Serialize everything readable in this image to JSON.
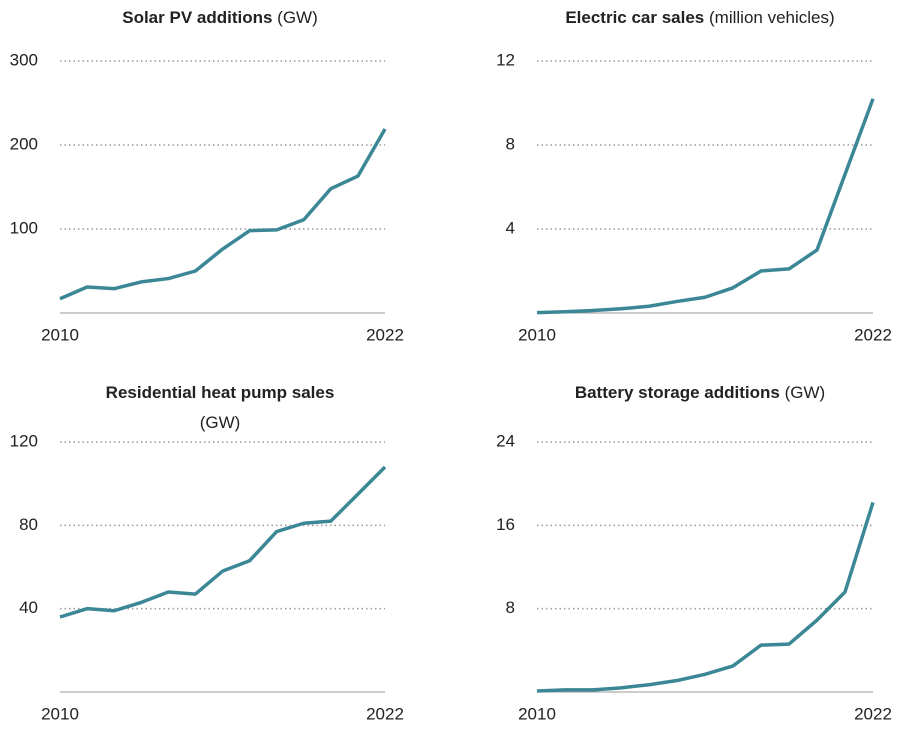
{
  "chart_data": [
    {
      "type": "line",
      "title": "Solar PV additions",
      "subtitle": "(GW)",
      "x": [
        2010,
        2011,
        2012,
        2013,
        2014,
        2015,
        2016,
        2017,
        2018,
        2019,
        2020,
        2021,
        2022
      ],
      "values": [
        17,
        31,
        29,
        37,
        41,
        50,
        76,
        98,
        99,
        111,
        148,
        163,
        219
      ],
      "color": "#3b8796",
      "xlim": [
        2010,
        2022
      ],
      "xticks": [
        2010,
        2022
      ],
      "ylim": [
        0,
        300
      ],
      "yticks": [
        100,
        200,
        300
      ],
      "grid": true
    },
    {
      "type": "line",
      "title": "Electric car sales",
      "subtitle": "(million vehicles)",
      "x": [
        2010,
        2011,
        2012,
        2013,
        2014,
        2015,
        2016,
        2017,
        2018,
        2019,
        2020,
        2021,
        2022
      ],
      "values": [
        0.02,
        0.06,
        0.12,
        0.2,
        0.32,
        0.55,
        0.75,
        1.2,
        2.0,
        2.1,
        3.0,
        6.6,
        10.2
      ],
      "color": "#3b8796",
      "xlim": [
        2010,
        2022
      ],
      "xticks": [
        2010,
        2022
      ],
      "ylim": [
        0,
        12
      ],
      "yticks": [
        4,
        8,
        12
      ],
      "grid": true
    },
    {
      "type": "line",
      "title": "Residential heat pump sales",
      "subtitle": "(GW)",
      "x": [
        2010,
        2011,
        2012,
        2013,
        2014,
        2015,
        2016,
        2017,
        2018,
        2019,
        2020,
        2021,
        2022
      ],
      "values": [
        36,
        40,
        39,
        43,
        48,
        47,
        58,
        63,
        77,
        81,
        82,
        95,
        108
      ],
      "color": "#3b8796",
      "xlim": [
        2010,
        2022
      ],
      "xticks": [
        2010,
        2022
      ],
      "ylim": [
        0,
        120
      ],
      "yticks": [
        40,
        80,
        120
      ],
      "grid": true
    },
    {
      "type": "line",
      "title": "Battery storage additions",
      "subtitle": "(GW)",
      "x": [
        2010,
        2011,
        2012,
        2013,
        2014,
        2015,
        2016,
        2017,
        2018,
        2019,
        2020,
        2021,
        2022
      ],
      "values": [
        0.1,
        0.2,
        0.2,
        0.4,
        0.7,
        1.1,
        1.7,
        2.5,
        4.5,
        4.6,
        6.9,
        9.6,
        18.2
      ],
      "color": "#3b8796",
      "xlim": [
        2010,
        2022
      ],
      "xticks": [
        2010,
        2022
      ],
      "ylim": [
        0,
        24
      ],
      "yticks": [
        8,
        16,
        24
      ],
      "grid": true
    }
  ]
}
